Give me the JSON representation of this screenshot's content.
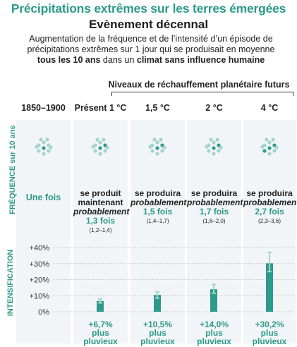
{
  "header": {
    "title": "Précipitations extrêmes sur les terres émergées",
    "subtitle": "Evènement décennal",
    "desc_line1": "Augmentation de la fréquence et de  l’intensité d’un épisode de",
    "desc_line2": "précipitations extrêmes sur 1 jour qui se produisait en moyenne",
    "desc_line3_bold1": "tous les 10 ans",
    "desc_line3_mid": " dans un ",
    "desc_line3_bold2": "climat sans influence humaine",
    "future_label": "Niveaux de réchauffement planétaire futurs"
  },
  "side_labels": {
    "frequency": "FRÉQUENCE sur 10 ans",
    "intensification": "INTENSIFICATION"
  },
  "columns": [
    {
      "label": "1850–1900",
      "freq_once": "Une fois"
    },
    {
      "label": "Présent 1 °C",
      "freq_line1": "se produit",
      "freq_line2": "maintenant",
      "freq_em": "probablement",
      "freq_val": "1,3 fois",
      "freq_range": "(1,2–1,4)",
      "intens_val": "+6,7%",
      "intens_l1": "plus",
      "intens_l2": "pluvieux"
    },
    {
      "label": "1,5 °C",
      "freq_line1": "se produira",
      "freq_em": "probablement",
      "freq_val": "1,5 fois",
      "freq_range": "(1,4–1,7)",
      "intens_val": "+10,5%",
      "intens_l1": "plus",
      "intens_l2": "pluvieux"
    },
    {
      "label": "2 °C",
      "freq_line1": "se produira",
      "freq_em": "probablement",
      "freq_val": "1,7 fois",
      "freq_range": "(1,6–2,0)",
      "intens_val": "+14,0%",
      "intens_l1": "plus",
      "intens_l2": "pluvieux"
    },
    {
      "label": "4 °C",
      "freq_line1": "se produira",
      "freq_em": "probablement",
      "freq_val": "2,7 fois",
      "freq_range": "(2,3–3,6)",
      "intens_val": "+30,2%",
      "intens_l1": "plus",
      "intens_l2": "pluvieux"
    }
  ],
  "chart_data": {
    "type": "bar",
    "title": "",
    "ylabel": "INTENSIFICATION",
    "ylim": [
      0,
      40
    ],
    "yticks": [
      "0%",
      "+10%",
      "+20%",
      "+30%",
      "+40%"
    ],
    "categories": [
      "Présent 1 °C",
      "1,5 °C",
      "2 °C",
      "4 °C"
    ],
    "values": [
      6.7,
      10.5,
      14.0,
      30.2
    ],
    "err_low": [
      5.5,
      8.5,
      11.5,
      25.0
    ],
    "err_high": [
      8.0,
      12.5,
      17.0,
      37.0
    ],
    "color": "#2e9a8b"
  },
  "icon_dots": [
    {
      "col": 0,
      "dark": 1
    },
    {
      "col": 1,
      "dark": 2
    },
    {
      "col": 2,
      "dark": 2
    },
    {
      "col": 3,
      "dark": 2
    },
    {
      "col": 4,
      "dark": 3
    }
  ],
  "colors": {
    "accent": "#2e9a8b",
    "light": "#a4d4cc",
    "panel": "#f2f5f7"
  }
}
